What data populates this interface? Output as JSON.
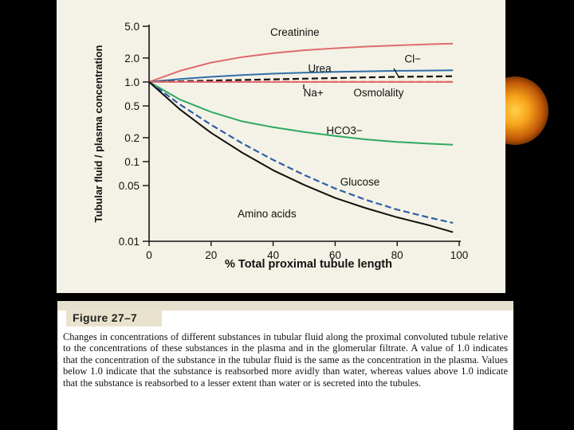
{
  "colors": {
    "background": "#000000",
    "panel": "#f4f2e6",
    "creatinine": "#e06a6e",
    "urea": "#2f6ea6",
    "glucose": "#2f5ea6",
    "hco3": "#2eaa62",
    "amino": "#111111",
    "chloride": "#111111",
    "sodium": "#e06a6e",
    "osmolality": "#e06a6e"
  },
  "chart_data": {
    "type": "line",
    "title": "",
    "xlabel": "% Total proximal tubule length",
    "ylabel": "Tubular fluid / plasma concentration",
    "xlim": [
      0,
      100
    ],
    "ylim": [
      0.01,
      5.0
    ],
    "yscale": "log",
    "x_ticks": [
      0,
      20,
      40,
      60,
      80,
      100
    ],
    "y_ticks": [
      5.0,
      2.0,
      1.0,
      0.5,
      0.2,
      0.1,
      0.05,
      0.01
    ],
    "y_tick_labels": [
      "5.0",
      "2.0",
      "1.0",
      "0.5",
      "0.2",
      "0.1",
      "0.05",
      "0.01"
    ],
    "x": [
      0,
      10,
      20,
      30,
      40,
      50,
      60,
      70,
      80,
      90,
      98
    ],
    "series": [
      {
        "name": "Creatinine",
        "label": "Creatinine",
        "color_key": "creatinine",
        "dashed": false,
        "values": [
          1.0,
          1.38,
          1.75,
          2.05,
          2.3,
          2.5,
          2.65,
          2.78,
          2.88,
          2.97,
          3.03
        ]
      },
      {
        "name": "Urea",
        "label": "Urea",
        "color_key": "urea",
        "dashed": false,
        "values": [
          1.0,
          1.09,
          1.16,
          1.22,
          1.27,
          1.31,
          1.34,
          1.36,
          1.38,
          1.39,
          1.4
        ]
      },
      {
        "name": "Cl-",
        "label": "Cl−",
        "color_key": "chloride",
        "dashed": true,
        "values": [
          1.0,
          1.02,
          1.04,
          1.06,
          1.08,
          1.1,
          1.12,
          1.14,
          1.16,
          1.17,
          1.18
        ]
      },
      {
        "name": "Na+",
        "label": "Na+",
        "color_key": "sodium",
        "dashed": true,
        "values": [
          1.0,
          1.0,
          1.0,
          1.0,
          1.0,
          1.0,
          1.0,
          1.0,
          1.0,
          1.0,
          1.0
        ]
      },
      {
        "name": "Osmolality",
        "label": "Osmolality",
        "color_key": "osmolality",
        "dashed": false,
        "values": [
          1.0,
          1.0,
          1.0,
          1.0,
          1.0,
          1.0,
          1.0,
          1.0,
          1.0,
          1.0,
          1.0
        ]
      },
      {
        "name": "HCO3-",
        "label": "HCO",
        "sub": "3",
        "sup": "−",
        "color_key": "hco3",
        "dashed": false,
        "values": [
          1.0,
          0.6,
          0.42,
          0.32,
          0.27,
          0.235,
          0.21,
          0.19,
          0.177,
          0.168,
          0.163
        ]
      },
      {
        "name": "Glucose",
        "label": "Glucose",
        "color_key": "glucose",
        "dashed": true,
        "values": [
          1.0,
          0.52,
          0.29,
          0.17,
          0.105,
          0.068,
          0.046,
          0.033,
          0.025,
          0.02,
          0.017
        ]
      },
      {
        "name": "Amino acids",
        "label": "Amino acids",
        "color_key": "amino",
        "dashed": false,
        "values": [
          1.0,
          0.45,
          0.23,
          0.13,
          0.078,
          0.051,
          0.035,
          0.026,
          0.02,
          0.016,
          0.013
        ]
      }
    ],
    "annotations": [
      {
        "text": "Creatinine",
        "x": 47,
        "y": 3.8,
        "color_key": "creatinine"
      },
      {
        "text": "Urea",
        "x": 55,
        "y": 1.33,
        "color_key": "urea"
      },
      {
        "text": "Cl−",
        "x": 85,
        "y": 1.75,
        "color_key": "chloride"
      },
      {
        "text": "Na+",
        "x": 53,
        "y": 0.66,
        "color_key": "sodium"
      },
      {
        "text": "Osmolality",
        "x": 74,
        "y": 0.66,
        "color_key": "osmolality"
      },
      {
        "text": "HCO3−",
        "x": 63,
        "y": 0.22,
        "color_key": "hco3"
      },
      {
        "text": "Glucose",
        "x": 68,
        "y": 0.05,
        "color_key": "glucose"
      },
      {
        "text": "Amino acids",
        "x": 38,
        "y": 0.02,
        "color_key": "amino"
      }
    ]
  },
  "caption": {
    "figure_label": "Figure 27–7",
    "text": "Changes in concentrations of different substances in tubular fluid along the proximal convoluted tubule relative to the concentrations of these substances in the plasma and in the glomerular filtrate. A value of 1.0 indicates that the concentration of the substance in the tubular fluid is the same as the concentration in the plasma. Values below 1.0 indicate that the substance is reabsorbed more avidly than water, whereas values above 1.0 indicate that the substance is reabsorbed to a lesser extent than water or is secreted into the tubules."
  }
}
